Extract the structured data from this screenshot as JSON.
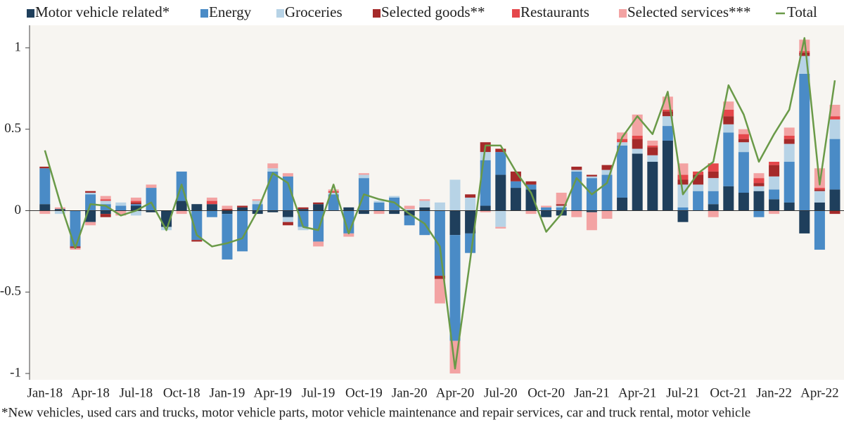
{
  "chart_data": {
    "type": "bar",
    "stacked": true,
    "categories": [
      "Jan-18",
      null,
      null,
      "Apr-18",
      null,
      null,
      "Jul-18",
      null,
      null,
      "Oct-18",
      null,
      null,
      "Jan-19",
      null,
      null,
      "Apr-19",
      null,
      null,
      "Jul-19",
      null,
      null,
      "Oct-19",
      null,
      null,
      "Jan-20",
      null,
      null,
      "Apr-20",
      null,
      null,
      "Jul-20",
      null,
      null,
      "Oct-20",
      null,
      null,
      "Jan-21",
      null,
      null,
      "Apr-21",
      null,
      null,
      "Jul-21",
      null,
      null,
      "Oct-21",
      null,
      null,
      "Jan-22",
      null,
      null,
      "Apr-22",
      null
    ],
    "series": [
      {
        "name": "Motor vehicle related*",
        "color": "#1f3f5c",
        "values": [
          0.04,
          0.01,
          0,
          -0.07,
          -0.02,
          0,
          0.03,
          -0.01,
          -0.1,
          0.06,
          0.04,
          0.04,
          -0.02,
          0.02,
          -0.02,
          -0.01,
          -0.04,
          0.01,
          0.04,
          0,
          0.02,
          -0.02,
          0,
          -0.02,
          -0.03,
          0.02,
          0,
          -0.15,
          -0.14,
          0.03,
          0.22,
          0.14,
          0.13,
          -0.04,
          -0.03,
          0,
          -0.01,
          0,
          0.08,
          0.35,
          0.3,
          0.43,
          -0.07,
          0,
          0.04,
          0.15,
          0.11,
          0.12,
          0.07,
          0.05,
          -0.14,
          0.05,
          0.13
        ]
      },
      {
        "name": "Energy",
        "color": "#4a8bc6",
        "values": [
          0.22,
          0,
          -0.22,
          0.1,
          0.04,
          0.03,
          0.01,
          0.14,
          0,
          0.18,
          -0.18,
          -0.04,
          -0.28,
          -0.25,
          0.04,
          0.24,
          0.21,
          -0.1,
          -0.19,
          0.1,
          -0.14,
          0.2,
          0.05,
          0.08,
          -0.06,
          -0.15,
          -0.4,
          -0.65,
          -0.12,
          0.28,
          0.14,
          0.04,
          0.03,
          0.02,
          0.02,
          0.24,
          0.2,
          0.22,
          0.32,
          0,
          0,
          0.09,
          0.02,
          0.12,
          0.08,
          0.33,
          0.25,
          -0.04,
          0.06,
          0.25,
          0.84,
          -0.24,
          0.31
        ]
      },
      {
        "name": "Groceries",
        "color": "#b7d3e6",
        "values": [
          0,
          -0.02,
          0,
          0.01,
          0.02,
          0.02,
          -0.03,
          0,
          -0.02,
          0,
          0,
          0,
          0,
          0,
          0.02,
          0.02,
          -0.03,
          -0.02,
          0,
          0.01,
          0,
          0.02,
          0.01,
          0.01,
          0.01,
          0.04,
          0.05,
          0.19,
          0.08,
          0.05,
          -0.1,
          0,
          0,
          0,
          0.01,
          0.01,
          0.01,
          0.03,
          0.02,
          0.03,
          0.04,
          0.06,
          0.14,
          0.04,
          0.08,
          0.05,
          0.06,
          0.03,
          0.08,
          0.11,
          0.11,
          0.07,
          0.12
        ]
      },
      {
        "name": "Selected goods**",
        "color": "#a52a2a",
        "values": [
          0.01,
          0,
          -0.01,
          0.01,
          -0.02,
          0,
          0.01,
          0,
          0,
          0,
          -0.01,
          0,
          0.01,
          0.01,
          0,
          0,
          -0.02,
          0.01,
          0.01,
          0,
          0,
          0,
          0,
          0,
          0,
          0,
          -0.02,
          0,
          0.02,
          0.06,
          0.02,
          0.06,
          0.02,
          0,
          0.01,
          0.02,
          0.01,
          0.03,
          0,
          0.06,
          0.05,
          0.03,
          0.03,
          0.06,
          0.04,
          0.05,
          0.02,
          0.02,
          0.07,
          0.03,
          0.02,
          0.01,
          -0.02
        ]
      },
      {
        "name": "Restaurants",
        "color": "#e5474b",
        "values": [
          0,
          0,
          0,
          0,
          0.01,
          0,
          0.01,
          0,
          0,
          0,
          0,
          0.02,
          0,
          0,
          0,
          0,
          0,
          0,
          0,
          0.01,
          0,
          0,
          0,
          0,
          0,
          0,
          0,
          0,
          0,
          0,
          0,
          0,
          0,
          0,
          0,
          0,
          0,
          0,
          0.02,
          0.02,
          0.01,
          0.01,
          0.03,
          0.02,
          0.05,
          0.04,
          0.03,
          0.03,
          0.02,
          0.02,
          0.01,
          0.01,
          0.02
        ]
      },
      {
        "name": "Selected services***",
        "color": "#f3a3a3",
        "values": [
          -0.02,
          0.01,
          -0.01,
          -0.02,
          0.02,
          -0.03,
          0.02,
          0.02,
          0,
          -0.02,
          0,
          0.02,
          0.02,
          0,
          0.01,
          0.03,
          0.02,
          0,
          -0.03,
          0.01,
          -0.02,
          0.01,
          -0.02,
          0,
          0.02,
          0.01,
          -0.15,
          -0.2,
          0,
          -0.01,
          -0.01,
          0,
          -0.02,
          0.01,
          0.07,
          -0.04,
          -0.11,
          -0.05,
          0.04,
          0.13,
          0.03,
          0.08,
          0.07,
          0,
          -0.04,
          0.05,
          0.03,
          0.03,
          -0.02,
          0.05,
          0.07,
          0.12,
          0.07
        ]
      },
      {
        "name": "Total",
        "color": "#6a9a48",
        "type": "line",
        "values": [
          0.37,
          0.05,
          -0.23,
          0.04,
          0.03,
          -0.03,
          0,
          0.05,
          -0.12,
          0.16,
          -0.15,
          -0.22,
          -0.2,
          -0.17,
          0,
          0.23,
          0.17,
          -0.1,
          -0.12,
          0.16,
          -0.14,
          0.1,
          0.07,
          0.05,
          -0.02,
          -0.08,
          -0.22,
          -0.97,
          -0.3,
          0.4,
          0.4,
          0.24,
          0.11,
          -0.13,
          -0.02,
          0.2,
          0.1,
          0.17,
          0.45,
          0.58,
          0.47,
          0.73,
          0.1,
          0.23,
          0.3,
          0.77,
          0.59,
          0.3,
          0.47,
          0.62,
          1.06,
          0.16,
          0.8
        ]
      }
    ],
    "ylim": [
      -1,
      1.1
    ],
    "yticks": [
      -1,
      -0.5,
      0,
      0.5,
      1
    ],
    "footnote": "*New vehicles, used cars and trucks, motor vehicle parts, motor vehicle maintenance and repair services, car and truck rental, motor vehicle"
  }
}
